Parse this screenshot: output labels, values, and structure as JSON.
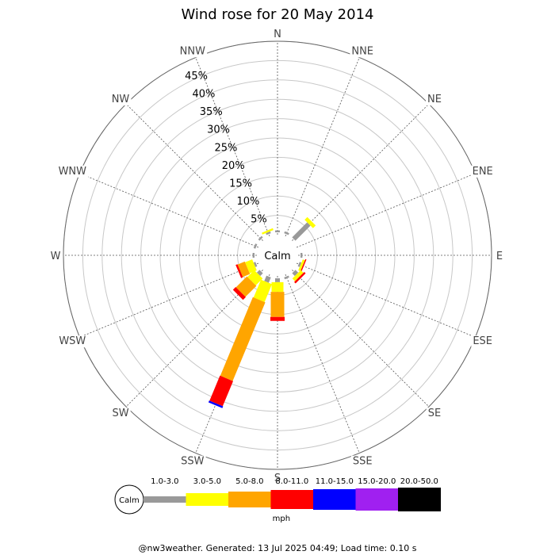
{
  "chart_data": {
    "type": "windrose",
    "title": "Wind rose for 20 May 2014",
    "calm_label": "Calm",
    "directions": [
      "N",
      "NNE",
      "NE",
      "ENE",
      "E",
      "ESE",
      "SE",
      "SSE",
      "S",
      "SSW",
      "SW",
      "WSW",
      "W",
      "WNW",
      "NW",
      "NNW"
    ],
    "ring_labels": [
      "5%",
      "10%",
      "15%",
      "20%",
      "25%",
      "30%",
      "35%",
      "40%",
      "45%"
    ],
    "rmax_percent": 50,
    "legend_unit": "mph",
    "bins": [
      {
        "label": "1.0-3.0",
        "color": "#999999"
      },
      {
        "label": "3.0-5.0",
        "color": "#ffff00"
      },
      {
        "label": "5.0-8.0",
        "color": "#ffa500"
      },
      {
        "label": "8.0-11.0",
        "color": "#ff0000"
      },
      {
        "label": "11.0-15.0",
        "color": "#0000ff"
      },
      {
        "label": "15.0-20.0",
        "color": "#a020f0"
      },
      {
        "label": "20.0-50.0",
        "color": "#000000"
      }
    ],
    "values_percent": [
      [
        0.5,
        0,
        0,
        0,
        0,
        0,
        0
      ],
      [
        0.5,
        0,
        0,
        0,
        0,
        0,
        0
      ],
      [
        5.5,
        1.0,
        0,
        0,
        0,
        0,
        0
      ],
      [
        0,
        0,
        0,
        0,
        0,
        0,
        0
      ],
      [
        0.5,
        0,
        0,
        0,
        0,
        0,
        0
      ],
      [
        0.5,
        0.6,
        0,
        0.3,
        0,
        0,
        0
      ],
      [
        1.0,
        1.0,
        0,
        0.5,
        0,
        0,
        0
      ],
      [
        0.5,
        0,
        0,
        0,
        0,
        0,
        0
      ],
      [
        1.0,
        2.5,
        6.5,
        1.0,
        0,
        0,
        0
      ],
      [
        1.5,
        5.0,
        22.0,
        7.0,
        0.5,
        0,
        0
      ],
      [
        1.0,
        2.5,
        4.0,
        1.0,
        0,
        0,
        0
      ],
      [
        0.5,
        2.0,
        2.0,
        0.5,
        0,
        0,
        0
      ],
      [
        0.5,
        0,
        0,
        0,
        0,
        0,
        0
      ],
      [
        0.5,
        0,
        0,
        0,
        0,
        0,
        0
      ],
      [
        0.5,
        0,
        0,
        0,
        0,
        0,
        0
      ],
      [
        0.5,
        0.5,
        0,
        0,
        0,
        0,
        0
      ]
    ]
  },
  "footer": "@nw3weather. Generated: 13 Jul 2025 04:49; Load time: 0.10 s"
}
